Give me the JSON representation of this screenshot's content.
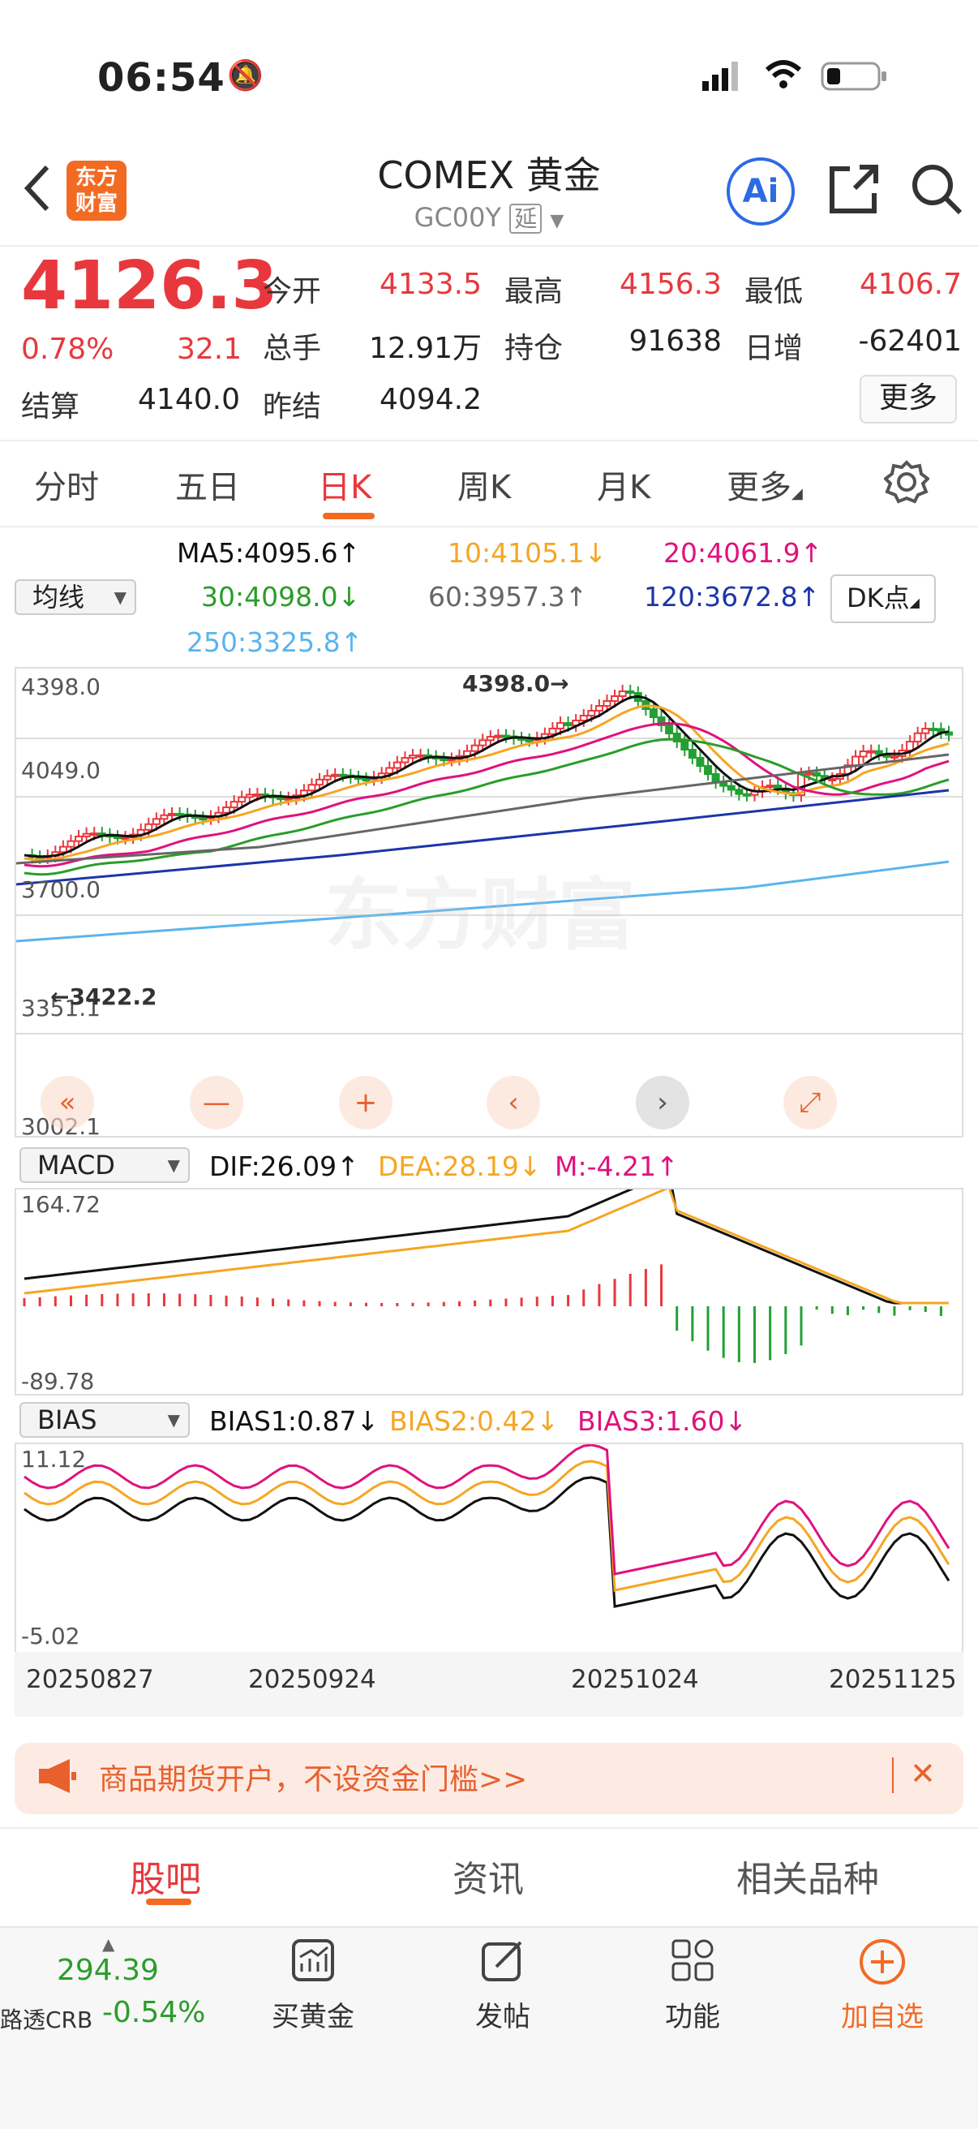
{
  "status_bar": {
    "time": "06:54"
  },
  "header": {
    "logo_text": "东方财富",
    "title": "COMEX 黄金",
    "code": "GC00Y",
    "delay_badge": "延",
    "ai_label": "Ai"
  },
  "quote": {
    "price": "4126.3",
    "change_pct": "0.78%",
    "change": "32.1",
    "rows": [
      [
        {
          "label": "今开",
          "value": "4133.5",
          "red": true
        },
        {
          "label": "最高",
          "value": "4156.3",
          "red": true
        },
        {
          "label": "最低",
          "value": "4106.7",
          "red": true
        }
      ],
      [
        {
          "label": "总手",
          "value": "12.91万",
          "red": false
        },
        {
          "label": "持仓",
          "value": "91638",
          "red": false
        },
        {
          "label": "日增",
          "value": "-62401",
          "red": false
        }
      ]
    ],
    "settle_label": "结算",
    "settle_value": "4140.0",
    "prev_settle_label": "昨结",
    "prev_settle_value": "4094.2",
    "more_button": "更多"
  },
  "period_tabs": [
    "分时",
    "五日",
    "日K",
    "周K",
    "月K",
    "更多"
  ],
  "active_tab": "日K",
  "indicator": {
    "ma_dropdown": "均线",
    "ma5": "MA5:4095.6↑",
    "ma10": "10:4105.1↓",
    "ma20": "20:4061.9↑",
    "ma30": "30:4098.0↓",
    "ma60": "60:3957.3↑",
    "ma120": "120:3672.8↑",
    "ma250": "250:3325.8↑",
    "dk_button": "DK点"
  },
  "colors": {
    "up": "#e8383d",
    "down": "#23a033",
    "ma5": "#111111",
    "ma10": "#f5a623",
    "ma20": "#e0127d",
    "ma30": "#2a9d2a",
    "ma60": "#666666",
    "ma120": "#1d35a8",
    "ma250": "#5ab4ee"
  },
  "kline": {
    "y_labels": [
      "4398.0",
      "4049.0",
      "3700.0",
      "3351.1",
      "3002.1"
    ],
    "high_marker": "4398.0",
    "low_marker": "3422.2",
    "watermark": "东方财富",
    "controls": [
      "«",
      "—",
      "+",
      "‹",
      "›",
      "⤢"
    ]
  },
  "macd": {
    "dropdown": "MACD",
    "dif": "DIF:26.09↑",
    "dea": "DEA:28.19↓",
    "m": "M:-4.21↑",
    "y_top": "164.72",
    "y_bottom": "-89.78"
  },
  "bias": {
    "dropdown": "BIAS",
    "bias1": "BIAS1:0.87↓",
    "bias2": "BIAS2:0.42↓",
    "bias3": "BIAS3:1.60↓",
    "y_top": "11.12",
    "y_bottom": "-5.02"
  },
  "dates": [
    "20250827",
    "20250924",
    "20251024",
    "20251125"
  ],
  "banner": {
    "text": "商品期货开户，不设资金门槛>>"
  },
  "bottom_tabs": [
    "股吧",
    "资讯",
    "相关品种"
  ],
  "toolbar": {
    "ticker_value": "294.39",
    "ticker_name": "路透CRB",
    "ticker_change": "-0.54%",
    "items": [
      {
        "label": "买黄金",
        "icon": "chart-icon"
      },
      {
        "label": "发帖",
        "icon": "edit-icon"
      },
      {
        "label": "功能",
        "icon": "grid-icon"
      },
      {
        "label": "加自选",
        "icon": "plus-circle-icon"
      }
    ]
  }
}
